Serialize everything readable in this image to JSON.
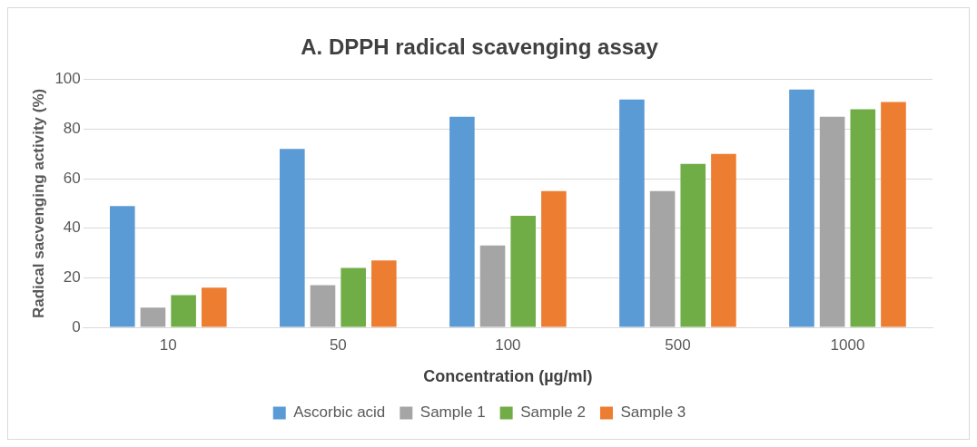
{
  "chart_data": {
    "type": "bar",
    "title": "A. DPPH radical scavenging assay",
    "xlabel": "Concentration (µg/ml)",
    "ylabel": "Radical sacvenging activity (%)",
    "categories": [
      "10",
      "50",
      "100",
      "500",
      "1000"
    ],
    "series": [
      {
        "name": "Ascorbic acid",
        "color": "#5b9bd5",
        "values": [
          49,
          72,
          85,
          92,
          96
        ]
      },
      {
        "name": "Sample 1",
        "color": "#a5a5a5",
        "values": [
          8,
          17,
          33,
          55,
          85
        ]
      },
      {
        "name": "Sample 2",
        "color": "#70ad47",
        "values": [
          13,
          24,
          45,
          66,
          88
        ]
      },
      {
        "name": "Sample 3",
        "color": "#ed7d31",
        "values": [
          16,
          27,
          55,
          70,
          91
        ]
      }
    ],
    "ylim": [
      0,
      100
    ],
    "yticks": [
      0,
      20,
      40,
      60,
      80,
      100
    ],
    "grid": "y",
    "legend": "bottom"
  }
}
